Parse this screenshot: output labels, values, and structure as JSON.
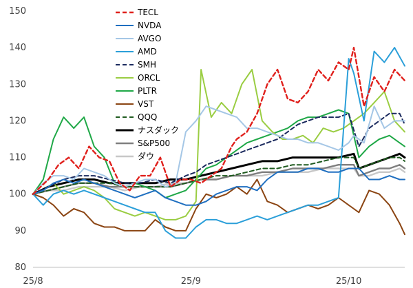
{
  "chart_data": {
    "type": "line",
    "title": "",
    "xlabel": "",
    "ylabel": "",
    "ylim": [
      80,
      150
    ],
    "yticks": [
      80,
      90,
      100,
      110,
      120,
      130,
      140,
      150
    ],
    "xtick_labels": [
      "25/8",
      "25/9",
      "25/10"
    ],
    "grid": false,
    "legend_position": "top-center",
    "series": [
      {
        "name": "TECL",
        "color": "#e0201c",
        "dash": "dashed",
        "width": 2.4,
        "x": [
          0,
          3,
          5,
          7,
          9,
          11,
          13,
          15,
          17,
          19,
          21,
          23,
          25,
          27,
          29,
          31,
          33,
          35,
          37,
          39,
          40,
          42,
          44,
          46,
          48,
          50,
          52,
          54,
          56,
          58,
          60,
          62,
          63,
          65,
          67,
          69,
          71,
          73
        ],
        "y": [
          100,
          104,
          108,
          110,
          107,
          113,
          110,
          109,
          103,
          101,
          105,
          105,
          110,
          102,
          104,
          104,
          103,
          105,
          107,
          113,
          115,
          117,
          122,
          130,
          134,
          126,
          125,
          128,
          134,
          131,
          136,
          134,
          140,
          124,
          132,
          128,
          134,
          131
        ]
      },
      {
        "name": "NVDA",
        "color": "#1f6fc0",
        "dash": "solid",
        "width": 2,
        "x": [
          0,
          2,
          4,
          6,
          8,
          10,
          12,
          14,
          16,
          18,
          20,
          22,
          24,
          26,
          28,
          30,
          32,
          34,
          36,
          38,
          40,
          42,
          44,
          46,
          48,
          50,
          52,
          54,
          56,
          58,
          60,
          62,
          64,
          66,
          68,
          70,
          72,
          73
        ],
        "y": [
          100,
          101,
          103,
          104,
          103,
          104,
          103,
          102,
          101,
          100,
          99,
          100,
          101,
          99,
          98,
          97,
          97,
          98,
          100,
          101,
          102,
          102,
          101,
          104,
          106,
          106,
          106,
          107,
          107,
          106,
          106,
          107,
          107,
          104,
          104,
          105,
          104,
          104
        ]
      },
      {
        "name": "AVGO",
        "color": "#a5c7e6",
        "dash": "solid",
        "width": 2,
        "x": [
          0,
          2,
          4,
          6,
          8,
          10,
          12,
          14,
          16,
          18,
          20,
          22,
          24,
          26,
          28,
          30,
          32,
          34,
          36,
          38,
          40,
          42,
          44,
          46,
          48,
          50,
          52,
          54,
          56,
          58,
          60,
          62,
          63,
          65,
          67,
          69,
          71,
          73
        ],
        "y": [
          100,
          103,
          105,
          105,
          104,
          107,
          106,
          105,
          103,
          102,
          103,
          104,
          104,
          102,
          103,
          117,
          120,
          124,
          123,
          122,
          121,
          118,
          118,
          117,
          116,
          115,
          115,
          114,
          114,
          113,
          112,
          114,
          116,
          114,
          124,
          118,
          120,
          120
        ]
      },
      {
        "name": "AMD",
        "color": "#2b9fd9",
        "dash": "solid",
        "width": 2,
        "x": [
          0,
          2,
          4,
          6,
          8,
          10,
          12,
          14,
          16,
          18,
          20,
          22,
          24,
          26,
          28,
          30,
          32,
          34,
          36,
          38,
          40,
          42,
          44,
          46,
          48,
          50,
          52,
          54,
          56,
          58,
          60,
          62,
          63,
          65,
          67,
          69,
          71,
          73
        ],
        "y": [
          100,
          97,
          100,
          101,
          100,
          101,
          100,
          99,
          98,
          97,
          96,
          95,
          95,
          90,
          88,
          88,
          91,
          93,
          93,
          92,
          92,
          93,
          94,
          93,
          94,
          95,
          96,
          97,
          97,
          98,
          99,
          137,
          133,
          120,
          139,
          136,
          140,
          135
        ]
      },
      {
        "name": "SMH",
        "color": "#1b2a5e",
        "dash": "dashed",
        "width": 2,
        "x": [
          0,
          3,
          6,
          9,
          12,
          15,
          18,
          21,
          24,
          27,
          30,
          32,
          34,
          36,
          38,
          40,
          42,
          44,
          46,
          48,
          50,
          52,
          54,
          56,
          58,
          60,
          62,
          64,
          66,
          68,
          70,
          72,
          73
        ],
        "y": [
          100,
          102,
          104,
          105,
          105,
          104,
          103,
          103,
          104,
          103,
          105,
          106,
          108,
          109,
          110,
          111,
          112,
          113,
          114,
          115,
          117,
          119,
          120,
          121,
          121,
          121,
          122,
          113,
          118,
          120,
          122,
          122,
          119
        ]
      },
      {
        "name": "ORCL",
        "color": "#9acd42",
        "dash": "solid",
        "width": 2,
        "x": [
          0,
          2,
          4,
          6,
          8,
          10,
          12,
          14,
          16,
          18,
          20,
          22,
          24,
          26,
          28,
          30,
          32,
          33,
          35,
          37,
          39,
          41,
          43,
          45,
          47,
          49,
          51,
          53,
          55,
          57,
          59,
          61,
          63,
          65,
          67,
          69,
          71,
          73
        ],
        "y": [
          100,
          101,
          103,
          100,
          101,
          102,
          101,
          99,
          96,
          95,
          94,
          95,
          94,
          93,
          93,
          94,
          98,
          134,
          121,
          125,
          122,
          130,
          134,
          120,
          117,
          115,
          115,
          116,
          114,
          118,
          117,
          118,
          120,
          122,
          125,
          128,
          120,
          117
        ]
      },
      {
        "name": "PLTR",
        "color": "#1fa847",
        "dash": "solid",
        "width": 2,
        "x": [
          0,
          2,
          4,
          6,
          8,
          10,
          12,
          14,
          16,
          18,
          20,
          22,
          24,
          26,
          28,
          30,
          32,
          34,
          36,
          38,
          40,
          42,
          44,
          46,
          48,
          50,
          52,
          54,
          56,
          58,
          60,
          62,
          64,
          66,
          68,
          70,
          72,
          73
        ],
        "y": [
          100,
          104,
          115,
          121,
          118,
          121,
          113,
          110,
          103,
          102,
          103,
          102,
          101,
          99,
          100,
          101,
          104,
          107,
          108,
          110,
          112,
          114,
          115,
          116,
          117,
          118,
          120,
          121,
          121,
          122,
          123,
          122,
          110,
          113,
          115,
          116,
          114,
          113
        ]
      },
      {
        "name": "VST",
        "color": "#8b4513",
        "dash": "solid",
        "width": 2,
        "x": [
          0,
          2,
          4,
          6,
          8,
          10,
          12,
          14,
          16,
          18,
          20,
          22,
          24,
          26,
          28,
          30,
          32,
          34,
          36,
          38,
          40,
          42,
          44,
          46,
          48,
          50,
          52,
          54,
          56,
          58,
          60,
          62,
          64,
          66,
          68,
          70,
          72,
          73
        ],
        "y": [
          100,
          99,
          97,
          94,
          96,
          95,
          92,
          91,
          91,
          90,
          90,
          90,
          93,
          91,
          90,
          90,
          96,
          100,
          99,
          100,
          102,
          100,
          104,
          98,
          97,
          95,
          96,
          97,
          96,
          97,
          99,
          97,
          95,
          101,
          100,
          97,
          92,
          89
        ]
      },
      {
        "name": "QQQ",
        "color": "#1e5a1e",
        "dash": "dashed",
        "width": 2,
        "x": [
          0,
          3,
          6,
          9,
          12,
          15,
          18,
          21,
          24,
          27,
          30,
          33,
          36,
          39,
          42,
          45,
          48,
          51,
          54,
          57,
          60,
          63,
          64,
          66,
          68,
          70,
          72,
          73
        ],
        "y": [
          100,
          101,
          102,
          103,
          103,
          103,
          102,
          102,
          102,
          102,
          103,
          104,
          105,
          105,
          106,
          107,
          107,
          108,
          108,
          109,
          110,
          110,
          107,
          108,
          109,
          110,
          110,
          109
        ]
      },
      {
        "name": "ナスダック",
        "color": "#000000",
        "dash": "solid",
        "width": 3,
        "x": [
          0,
          3,
          6,
          9,
          12,
          15,
          18,
          21,
          24,
          27,
          30,
          33,
          36,
          39,
          42,
          45,
          48,
          51,
          54,
          57,
          60,
          63,
          64,
          66,
          68,
          70,
          72,
          73
        ],
        "y": [
          100,
          102,
          103,
          104,
          104,
          103,
          103,
          103,
          103,
          104,
          104,
          105,
          106,
          107,
          108,
          109,
          109,
          110,
          110,
          110,
          110,
          111,
          107,
          108,
          109,
          110,
          111,
          110
        ]
      },
      {
        "name": "S&P500",
        "color": "#7f7f7f",
        "dash": "solid",
        "width": 2.4,
        "x": [
          0,
          3,
          6,
          9,
          12,
          15,
          18,
          21,
          24,
          27,
          30,
          33,
          36,
          39,
          42,
          45,
          48,
          51,
          54,
          57,
          60,
          63,
          64,
          66,
          68,
          70,
          72,
          73
        ],
        "y": [
          100,
          101,
          102,
          103,
          103,
          102,
          102,
          102,
          102,
          102,
          103,
          104,
          104,
          105,
          105,
          106,
          106,
          107,
          107,
          107,
          108,
          108,
          105,
          106,
          107,
          107,
          108,
          107
        ]
      },
      {
        "name": "ダウ",
        "color": "#c8c8c8",
        "dash": "solid",
        "width": 2.4,
        "x": [
          0,
          3,
          6,
          9,
          12,
          15,
          18,
          21,
          24,
          27,
          30,
          33,
          36,
          39,
          42,
          45,
          48,
          51,
          54,
          57,
          60,
          63,
          64,
          66,
          68,
          70,
          72,
          73
        ],
        "y": [
          100,
          101,
          101,
          102,
          102,
          102,
          101,
          102,
          102,
          103,
          103,
          104,
          104,
          105,
          105,
          105,
          106,
          106,
          106,
          107,
          107,
          107,
          105,
          105,
          106,
          106,
          107,
          106
        ]
      }
    ]
  }
}
